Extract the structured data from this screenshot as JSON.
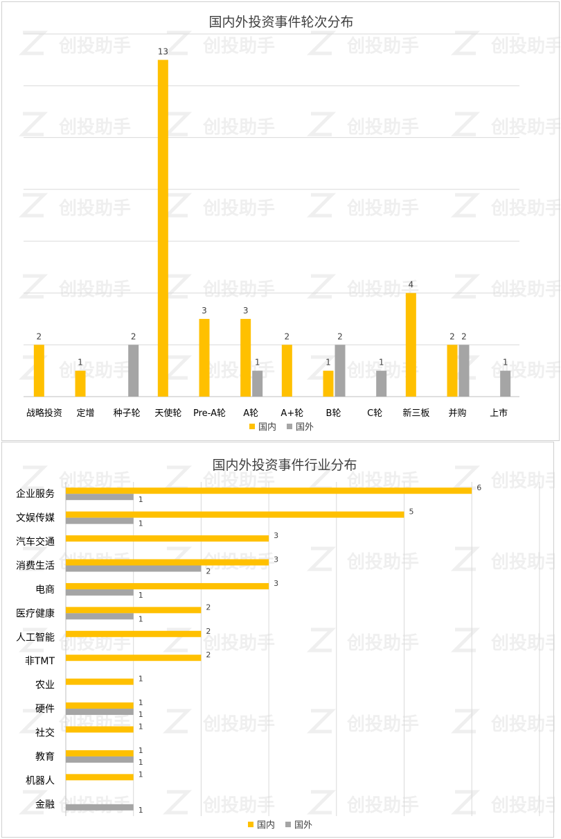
{
  "colors": {
    "domestic": "#FFC000",
    "foreign": "#A5A5A5",
    "grid": "#D9D9D9",
    "text": "#404040",
    "axis": "#BFBFBF"
  },
  "watermark_text": "创投助手",
  "chart_data": [
    {
      "type": "bar",
      "title": "国内外投资事件轮次分布",
      "categories": [
        "战略投资",
        "定增",
        "种子轮",
        "天使轮",
        "Pre-A轮",
        "A轮",
        "A+轮",
        "B轮",
        "C轮",
        "新三板",
        "并购",
        "上市"
      ],
      "series": [
        {
          "name": "国内",
          "values": [
            2,
            1,
            null,
            13,
            3,
            3,
            2,
            1,
            null,
            4,
            2,
            null
          ]
        },
        {
          "name": "国外",
          "values": [
            null,
            null,
            2,
            null,
            null,
            1,
            null,
            2,
            1,
            null,
            2,
            1
          ]
        }
      ],
      "ylim": [
        0,
        14
      ],
      "grid": true,
      "legend": "bottom"
    },
    {
      "type": "bar",
      "orientation": "horizontal",
      "title": "国内外投资事件行业分布",
      "categories": [
        "企业服务",
        "文娱传媒",
        "汽车交通",
        "消费生活",
        "电商",
        "医疗健康",
        "人工智能",
        "非TMT",
        "农业",
        "硬件",
        "社交",
        "教育",
        "机器人",
        "金融"
      ],
      "series": [
        {
          "name": "国内",
          "values": [
            6,
            5,
            3,
            3,
            3,
            2,
            2,
            2,
            1,
            1,
            1,
            1,
            1,
            null
          ]
        },
        {
          "name": "国外",
          "values": [
            1,
            1,
            null,
            2,
            1,
            1,
            null,
            null,
            null,
            1,
            null,
            1,
            null,
            1
          ]
        }
      ],
      "xlim": [
        0,
        7
      ],
      "grid": true,
      "legend": "bottom"
    }
  ]
}
